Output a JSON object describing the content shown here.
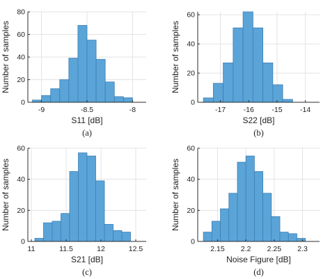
{
  "colors": {
    "bar_fill": "#5aa4d8",
    "bar_stroke": "#3f7fb3",
    "grid": "#e3e3e3",
    "axis": "#2b2b2b"
  },
  "chart_data": [
    {
      "type": "bar",
      "caption": "(a)",
      "xlabel": "S11 [dB]",
      "ylabel": "Number of samples",
      "xlim": [
        -9.15,
        -7.85
      ],
      "ylim": [
        0,
        80
      ],
      "xticks": [
        -9,
        -8.5,
        -8
      ],
      "xtick_labels": [
        "-9",
        "-8.5",
        "-8"
      ],
      "yticks": [
        0,
        20,
        40,
        60,
        80
      ],
      "grid": true,
      "bin_edges": [
        -9.1,
        -9.0,
        -8.9,
        -8.8,
        -8.7,
        -8.6,
        -8.5,
        -8.4,
        -8.3,
        -8.2,
        -8.1,
        -8.0,
        -7.9
      ],
      "counts": [
        2,
        6,
        12,
        20,
        39,
        68,
        55,
        38,
        18,
        5,
        4,
        0
      ]
    },
    {
      "type": "bar",
      "caption": "(b)",
      "xlabel": "S22 [dB]",
      "ylabel": "Number of samples",
      "xlim": [
        -17.8,
        -13.5
      ],
      "ylim": [
        0,
        62
      ],
      "xticks": [
        -17,
        -16,
        -15,
        -14
      ],
      "xtick_labels": [
        "-17",
        "-16",
        "-15",
        "-14"
      ],
      "yticks": [
        0,
        20,
        40,
        60
      ],
      "grid": true,
      "bin_edges": [
        -17.6,
        -17.25,
        -16.9,
        -16.55,
        -16.2,
        -15.85,
        -15.5,
        -15.15,
        -14.8,
        -14.45
      ],
      "counts": [
        3,
        13,
        27,
        51,
        62,
        51,
        27,
        12,
        2
      ]
    },
    {
      "type": "bar",
      "caption": "(c)",
      "xlabel": "S21 [dB]",
      "ylabel": "Number of samples",
      "xlim": [
        10.95,
        12.65
      ],
      "ylim": [
        0,
        60
      ],
      "xticks": [
        11,
        11.5,
        12,
        12.5
      ],
      "xtick_labels": [
        "11",
        "11.5",
        "12",
        "12.5"
      ],
      "yticks": [
        0,
        20,
        40,
        60
      ],
      "grid": true,
      "bin_edges": [
        11.05,
        11.175,
        11.3,
        11.425,
        11.55,
        11.675,
        11.8,
        11.925,
        12.05,
        12.175,
        12.3,
        12.425,
        12.55
      ],
      "counts": [
        2,
        12,
        13,
        18,
        45,
        57,
        55,
        39,
        11,
        7,
        6,
        0
      ]
    },
    {
      "type": "bar",
      "caption": "(d)",
      "xlabel": "Noise Figure [dB]",
      "ylabel": "Number of samples",
      "xlim": [
        2.115,
        2.33
      ],
      "ylim": [
        0,
        60
      ],
      "xticks": [
        2.15,
        2.2,
        2.25,
        2.3
      ],
      "xtick_labels": [
        "2.15",
        "2.2",
        "2.25",
        "2.3"
      ],
      "yticks": [
        0,
        20,
        40,
        60
      ],
      "grid": true,
      "bin_edges": [
        2.125,
        2.14,
        2.155,
        2.17,
        2.185,
        2.2,
        2.215,
        2.23,
        2.245,
        2.26,
        2.275,
        2.29,
        2.305,
        2.32
      ],
      "counts": [
        6,
        13,
        21,
        31,
        51,
        55,
        45,
        31,
        16,
        6,
        5,
        2,
        0
      ]
    }
  ]
}
